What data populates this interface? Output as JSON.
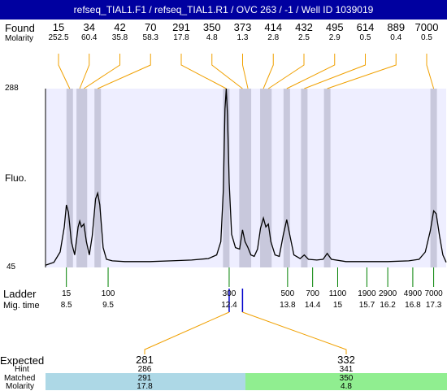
{
  "window_title": "refseq_TIAL1.F1 / refseq_TIAL1.R1 / OVC 263 / -1 / Well ID 1039019",
  "labels": {
    "found": "Found",
    "molarity": "Molarity",
    "fluo": "Fluo.",
    "ladder": "Ladder",
    "mig_time": "Mig. time",
    "expected": "Expected",
    "hint": "Hint",
    "matched": "Matched",
    "molarity_bottom": "Molarity"
  },
  "colors": {
    "title_bar": "#0000a0",
    "plot_bg": "#eeeeff",
    "band": "#c8c8dc",
    "trace": "#000000",
    "found_leader": "#f0a000",
    "ladder_tick": "#008000",
    "matched_left": "#add8e6",
    "matched_right": "#90ee90"
  },
  "chart_data": {
    "type": "line",
    "ylabel": "Fluo.",
    "y_ticks": [
      "288",
      "45"
    ],
    "ylim": [
      45,
      288
    ],
    "xlim": [
      8.0,
      17.6
    ],
    "found_peaks": [
      {
        "size": "15",
        "molarity": "252.5",
        "time": 8.58
      },
      {
        "size": "34",
        "molarity": "60.4",
        "time": 8.82
      },
      {
        "size": "42",
        "molarity": "35.8",
        "time": 8.92
      },
      {
        "size": "70",
        "molarity": "58.3",
        "time": 9.25
      },
      {
        "size": "291",
        "molarity": "17.8",
        "time": 12.33
      },
      {
        "size": "350",
        "molarity": "4.8",
        "time": 12.72
      },
      {
        "size": "373",
        "molarity": "1.3",
        "time": 12.85
      },
      {
        "size": "414",
        "molarity": "2.8",
        "time": 13.22
      },
      {
        "size": "432",
        "molarity": "2.5",
        "time": 13.34
      },
      {
        "size": "495",
        "molarity": "2.9",
        "time": 13.78
      },
      {
        "size": "614",
        "molarity": "0.5",
        "time": 14.2
      },
      {
        "size": "889",
        "molarity": "0.4",
        "time": 14.75
      },
      {
        "size": "7000",
        "molarity": "0.5",
        "time": 17.3
      }
    ],
    "ladder": [
      {
        "size": "15",
        "time": "8.5",
        "t": 8.5
      },
      {
        "size": "100",
        "time": "9.5",
        "t": 9.5
      },
      {
        "size": "300",
        "time": "12.4",
        "t": 12.4
      },
      {
        "size": "500",
        "time": "13.8",
        "t": 13.8
      },
      {
        "size": "700",
        "time": "14.4",
        "t": 14.4
      },
      {
        "size": "1100",
        "time": "15",
        "t": 15
      },
      {
        "size": "1900",
        "time": "15.7",
        "t": 15.7
      },
      {
        "size": "2900",
        "time": "16.2",
        "t": 16.2
      },
      {
        "size": "4900",
        "time": "16.8",
        "t": 16.8
      },
      {
        "size": "7000",
        "time": "17.3",
        "t": 17.3
      }
    ],
    "trace": [
      [
        8.0,
        48
      ],
      [
        8.2,
        52
      ],
      [
        8.35,
        66
      ],
      [
        8.45,
        100
      ],
      [
        8.5,
        130
      ],
      [
        8.55,
        120
      ],
      [
        8.62,
        80
      ],
      [
        8.7,
        62
      ],
      [
        8.78,
        100
      ],
      [
        8.82,
        108
      ],
      [
        8.86,
        100
      ],
      [
        8.92,
        104
      ],
      [
        8.98,
        80
      ],
      [
        9.05,
        62
      ],
      [
        9.12,
        88
      ],
      [
        9.2,
        138
      ],
      [
        9.25,
        146
      ],
      [
        9.3,
        130
      ],
      [
        9.38,
        72
      ],
      [
        9.46,
        56
      ],
      [
        9.6,
        54
      ],
      [
        9.9,
        53
      ],
      [
        10.5,
        53
      ],
      [
        11.0,
        54
      ],
      [
        11.5,
        55
      ],
      [
        11.9,
        57
      ],
      [
        12.1,
        62
      ],
      [
        12.2,
        80
      ],
      [
        12.26,
        150
      ],
      [
        12.3,
        260
      ],
      [
        12.33,
        288
      ],
      [
        12.36,
        252
      ],
      [
        12.4,
        160
      ],
      [
        12.46,
        90
      ],
      [
        12.55,
        72
      ],
      [
        12.65,
        70
      ],
      [
        12.72,
        96
      ],
      [
        12.78,
        80
      ],
      [
        12.85,
        72
      ],
      [
        12.92,
        62
      ],
      [
        13.0,
        60
      ],
      [
        13.08,
        70
      ],
      [
        13.15,
        98
      ],
      [
        13.22,
        112
      ],
      [
        13.28,
        100
      ],
      [
        13.34,
        104
      ],
      [
        13.4,
        80
      ],
      [
        13.5,
        62
      ],
      [
        13.6,
        60
      ],
      [
        13.7,
        90
      ],
      [
        13.78,
        110
      ],
      [
        13.85,
        90
      ],
      [
        13.95,
        62
      ],
      [
        14.1,
        57
      ],
      [
        14.2,
        62
      ],
      [
        14.3,
        56
      ],
      [
        14.5,
        55
      ],
      [
        14.65,
        56
      ],
      [
        14.75,
        64
      ],
      [
        14.85,
        56
      ],
      [
        15.2,
        53
      ],
      [
        15.7,
        53
      ],
      [
        16.2,
        53
      ],
      [
        16.7,
        54
      ],
      [
        16.95,
        56
      ],
      [
        17.1,
        66
      ],
      [
        17.22,
        95
      ],
      [
        17.3,
        122
      ],
      [
        17.36,
        118
      ],
      [
        17.44,
        88
      ],
      [
        17.52,
        62
      ],
      [
        17.6,
        52
      ]
    ],
    "ladder_match_times": [
      12.4,
      12.72
    ],
    "matches": [
      {
        "expected": "281",
        "hint": "286",
        "matched": "291",
        "molarity": "17.8"
      },
      {
        "expected": "332",
        "hint": "341",
        "matched": "350",
        "molarity": "4.8"
      }
    ]
  }
}
